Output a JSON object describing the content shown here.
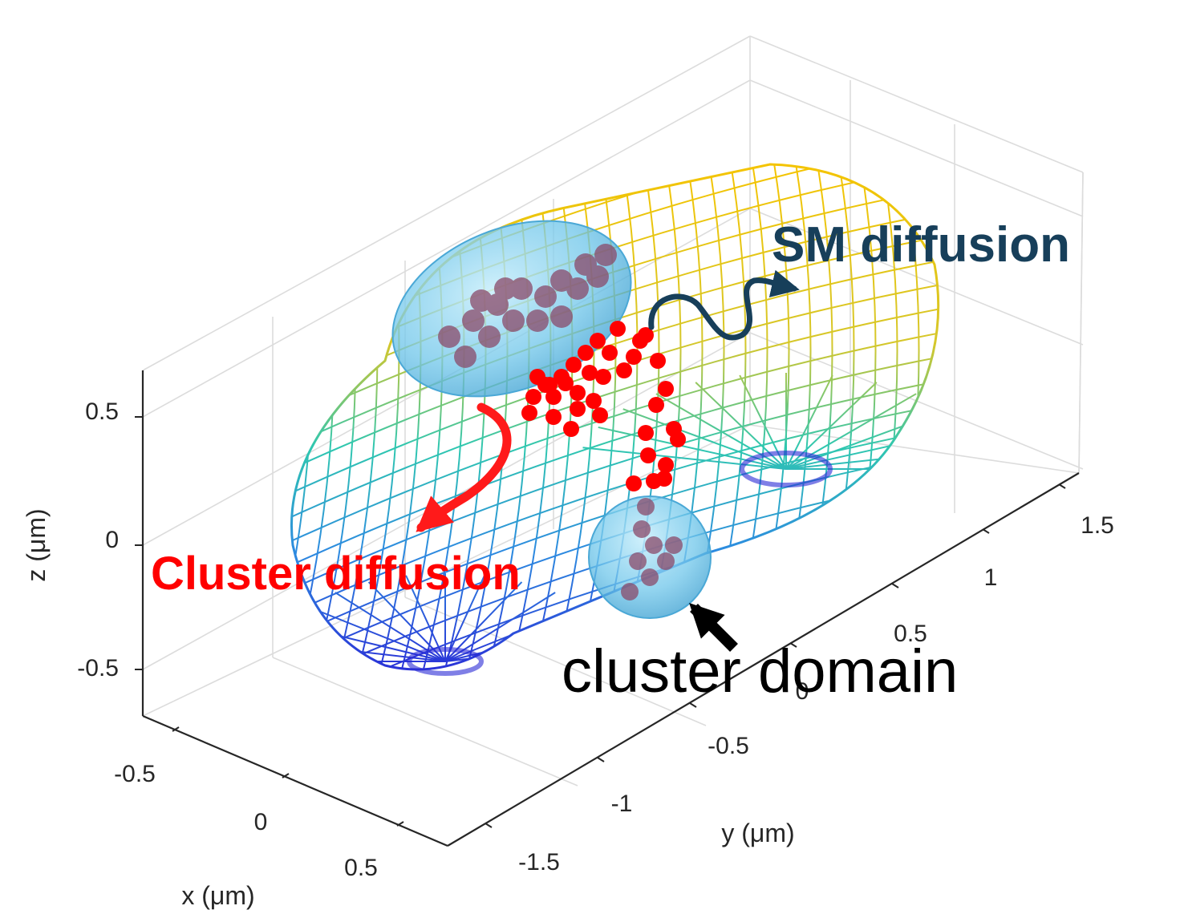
{
  "figure": {
    "axes": {
      "x": {
        "label": "x (μm)",
        "ticks": [
          "-0.5",
          "0",
          "0.5"
        ]
      },
      "y": {
        "label": "y (μm)",
        "ticks": [
          "-1.5",
          "-1",
          "-0.5",
          "0",
          "0.5",
          "1",
          "1.5"
        ]
      },
      "z": {
        "label": "z (μm)",
        "ticks": [
          "0.5",
          "0",
          "-0.5"
        ]
      }
    },
    "annotations": {
      "sm_diffusion": "SM diffusion",
      "cluster_diffusion": "Cluster diffusion",
      "cluster_domain": "cluster domain"
    },
    "colors": {
      "sm_label": "#173f5a",
      "cluster_label": "#ff0000",
      "domain_label": "#000000",
      "molecules": "#ff0000",
      "cluster_blob": "#7fd0ee",
      "mesh_top": "#f5c400",
      "mesh_mid": "#2fc7b0",
      "mesh_bottom": "#2a2ad6"
    },
    "mesh_colormap": "parula"
  }
}
